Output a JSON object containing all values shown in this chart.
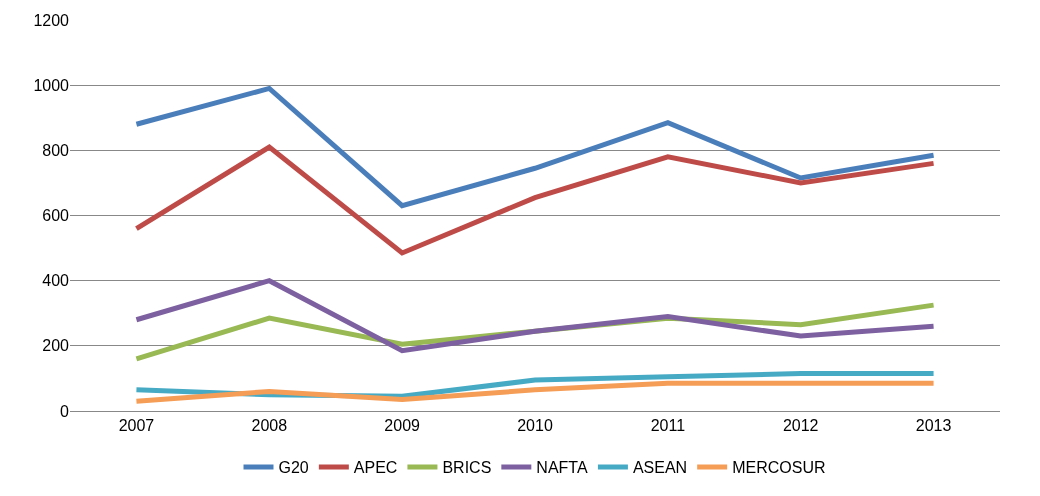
{
  "chart_data": {
    "type": "line",
    "categories": [
      "2007",
      "2008",
      "2009",
      "2010",
      "2011",
      "2012",
      "2013"
    ],
    "series": [
      {
        "name": "G20",
        "color": "#4a7ebb",
        "values": [
          880,
          990,
          630,
          745,
          885,
          715,
          785
        ]
      },
      {
        "name": "APEC",
        "color": "#be4b48",
        "values": [
          560,
          810,
          485,
          655,
          780,
          700,
          760
        ]
      },
      {
        "name": "BRICS",
        "color": "#98b954",
        "values": [
          160,
          285,
          205,
          245,
          285,
          265,
          325
        ]
      },
      {
        "name": "NAFTA",
        "color": "#7d60a0",
        "values": [
          280,
          400,
          185,
          245,
          290,
          230,
          260
        ]
      },
      {
        "name": "ASEAN",
        "color": "#46aac5",
        "values": [
          65,
          50,
          45,
          95,
          105,
          115,
          115
        ]
      },
      {
        "name": "MERCOSUR",
        "color": "#f59d56",
        "values": [
          30,
          60,
          35,
          65,
          85,
          85,
          85
        ]
      }
    ],
    "ylim": [
      0,
      1200
    ],
    "yticks": [
      0,
      200,
      400,
      600,
      800,
      1000,
      1200
    ],
    "grid": "y",
    "legend": "bottom",
    "marker": "none",
    "line_style": "solid"
  }
}
